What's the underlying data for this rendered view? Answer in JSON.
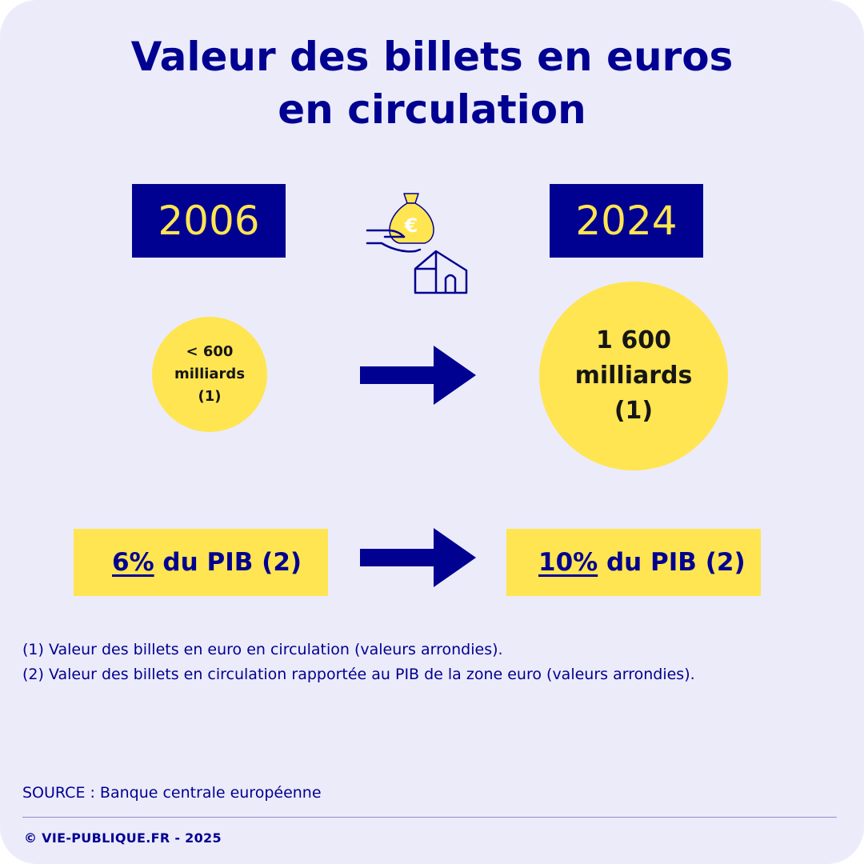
{
  "title": {
    "line1": "Valeur des billets en euros",
    "line2": "en circulation"
  },
  "years": {
    "start": "2006",
    "end": "2024"
  },
  "circles": {
    "start": {
      "line1": "< 600",
      "line2": "milliards",
      "line3": "(1)"
    },
    "end": {
      "line1": "1 600",
      "line2": "milliards",
      "line3": "(1)"
    }
  },
  "pib": {
    "start": {
      "percent": "6%",
      "rest": " du PIB (2)"
    },
    "end": {
      "percent": "10%",
      "rest": " du PIB (2)"
    }
  },
  "notes": [
    "(1) Valeur des billets en euro en circulation (valeurs arrondies).",
    "(2) Valeur des billets en circulation rapportée au PIB de la zone euro (valeurs arrondies)."
  ],
  "source": "SOURCE : Banque centrale européenne",
  "copyright": "© VIE-PUBLIQUE.FR - 2025",
  "icons": {
    "illustration": "hand-moneybag-house-icon",
    "arrow": "arrow-right-icon",
    "money_symbol": "€"
  },
  "colors": {
    "background": "#ECEBFA",
    "navy": "#000091",
    "yellow": "#FFE552",
    "text_dark": "#161616"
  }
}
